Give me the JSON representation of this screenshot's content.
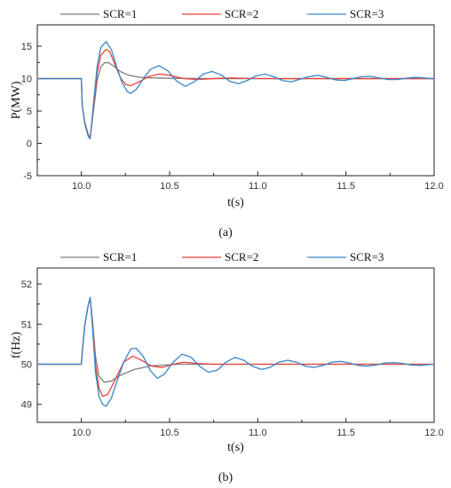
{
  "chart_data": [
    {
      "type": "line",
      "caption": "(a)",
      "xlabel": "t(s)",
      "ylabel": "P(MW)",
      "xlim": [
        9.75,
        12.0
      ],
      "ylim": [
        -5,
        18.3
      ],
      "x_ticks": [
        10.0,
        10.5,
        11.0,
        11.5,
        12.0
      ],
      "x_tick_labels": [
        "10.0",
        "10.5",
        "11.0",
        "11.5",
        "12.0"
      ],
      "y_ticks": [
        -5,
        0,
        5,
        10,
        15
      ],
      "y_tick_labels": [
        "-5",
        "0",
        "5",
        "10",
        "15"
      ],
      "legend_position": "top",
      "series": [
        {
          "name": "SCR=1",
          "color": "#7f7f7f",
          "points": [
            [
              9.75,
              10
            ],
            [
              10.0,
              10
            ],
            [
              10.005,
              5.8
            ],
            [
              10.02,
              3.2
            ],
            [
              10.04,
              1.3
            ],
            [
              10.05,
              0.9
            ],
            [
              10.07,
              5.3
            ],
            [
              10.09,
              9.8
            ],
            [
              10.11,
              11.8
            ],
            [
              10.13,
              12.4
            ],
            [
              10.15,
              12.5
            ],
            [
              10.18,
              12.0
            ],
            [
              10.22,
              11.1
            ],
            [
              10.27,
              10.5
            ],
            [
              10.33,
              10.2
            ],
            [
              10.4,
              10.1
            ],
            [
              10.5,
              10.05
            ],
            [
              10.7,
              10.0
            ],
            [
              12.0,
              10.0
            ]
          ]
        },
        {
          "name": "SCR=2",
          "color": "#e8443a",
          "points": [
            [
              9.75,
              10
            ],
            [
              10.0,
              10
            ],
            [
              10.005,
              5.8
            ],
            [
              10.02,
              3.0
            ],
            [
              10.04,
              1.1
            ],
            [
              10.05,
              0.8
            ],
            [
              10.07,
              6.0
            ],
            [
              10.09,
              11.0
            ],
            [
              10.11,
              13.6
            ],
            [
              10.14,
              14.5
            ],
            [
              10.16,
              14.2
            ],
            [
              10.19,
              12.2
            ],
            [
              10.22,
              10.2
            ],
            [
              10.25,
              9.1
            ],
            [
              10.28,
              8.9
            ],
            [
              10.32,
              9.4
            ],
            [
              10.38,
              10.3
            ],
            [
              10.44,
              10.7
            ],
            [
              10.5,
              10.5
            ],
            [
              10.58,
              10.0
            ],
            [
              10.66,
              9.85
            ],
            [
              10.75,
              10.0
            ],
            [
              10.85,
              10.1
            ],
            [
              10.95,
              10.02
            ],
            [
              11.1,
              10.0
            ],
            [
              12.0,
              10.0
            ]
          ]
        },
        {
          "name": "SCR=3",
          "color": "#3a86c8",
          "points": [
            [
              9.75,
              10
            ],
            [
              10.0,
              10
            ],
            [
              10.005,
              5.8
            ],
            [
              10.02,
              2.9
            ],
            [
              10.04,
              1.0
            ],
            [
              10.05,
              0.7
            ],
            [
              10.07,
              6.5
            ],
            [
              10.09,
              12.0
            ],
            [
              10.11,
              14.8
            ],
            [
              10.14,
              15.7
            ],
            [
              10.17,
              14.5
            ],
            [
              10.2,
              11.8
            ],
            [
              10.23,
              9.4
            ],
            [
              10.26,
              8.0
            ],
            [
              10.28,
              7.7
            ],
            [
              10.31,
              8.3
            ],
            [
              10.35,
              9.9
            ],
            [
              10.39,
              11.4
            ],
            [
              10.44,
              12.0
            ],
            [
              10.49,
              11.2
            ],
            [
              10.54,
              9.6
            ],
            [
              10.59,
              8.8
            ],
            [
              10.64,
              9.5
            ],
            [
              10.69,
              10.7
            ],
            [
              10.74,
              11.1
            ],
            [
              10.79,
              10.6
            ],
            [
              10.84,
              9.6
            ],
            [
              10.89,
              9.2
            ],
            [
              10.94,
              9.7
            ],
            [
              10.99,
              10.4
            ],
            [
              11.04,
              10.7
            ],
            [
              11.09,
              10.3
            ],
            [
              11.14,
              9.7
            ],
            [
              11.19,
              9.5
            ],
            [
              11.24,
              9.9
            ],
            [
              11.29,
              10.3
            ],
            [
              11.34,
              10.5
            ],
            [
              11.39,
              10.2
            ],
            [
              11.44,
              9.8
            ],
            [
              11.49,
              9.7
            ],
            [
              11.54,
              10.0
            ],
            [
              11.59,
              10.3
            ],
            [
              11.64,
              10.35
            ],
            [
              11.69,
              10.1
            ],
            [
              11.74,
              9.85
            ],
            [
              11.79,
              9.85
            ],
            [
              11.84,
              10.05
            ],
            [
              11.89,
              10.2
            ],
            [
              11.94,
              10.1
            ],
            [
              12.0,
              9.95
            ]
          ]
        }
      ]
    },
    {
      "type": "line",
      "caption": "(b)",
      "xlabel": "t(s)",
      "ylabel": "f(Hz)",
      "xlim": [
        9.75,
        12.0
      ],
      "ylim": [
        48.55,
        52.4
      ],
      "x_ticks": [
        10.0,
        10.5,
        11.0,
        11.5,
        12.0
      ],
      "x_tick_labels": [
        "10.0",
        "10.5",
        "11.0",
        "11.5",
        "12.0"
      ],
      "y_ticks": [
        49,
        50,
        51,
        52
      ],
      "y_tick_labels": [
        "49",
        "50",
        "51",
        "52"
      ],
      "legend_position": "top",
      "series": [
        {
          "name": "SCR=1",
          "color": "#7f7f7f",
          "points": [
            [
              9.75,
              50
            ],
            [
              10.0,
              50
            ],
            [
              10.005,
              50.3
            ],
            [
              10.02,
              51.0
            ],
            [
              10.04,
              51.5
            ],
            [
              10.05,
              51.65
            ],
            [
              10.065,
              51.0
            ],
            [
              10.08,
              50.2
            ],
            [
              10.1,
              49.7
            ],
            [
              10.13,
              49.55
            ],
            [
              10.17,
              49.58
            ],
            [
              10.22,
              49.72
            ],
            [
              10.3,
              49.87
            ],
            [
              10.4,
              49.96
            ],
            [
              10.55,
              50.0
            ],
            [
              12.0,
              50.0
            ]
          ]
        },
        {
          "name": "SCR=2",
          "color": "#e8443a",
          "points": [
            [
              9.75,
              50
            ],
            [
              10.0,
              50
            ],
            [
              10.005,
              50.3
            ],
            [
              10.02,
              51.0
            ],
            [
              10.04,
              51.5
            ],
            [
              10.05,
              51.65
            ],
            [
              10.065,
              50.9
            ],
            [
              10.08,
              50.0
            ],
            [
              10.1,
              49.4
            ],
            [
              10.12,
              49.2
            ],
            [
              10.15,
              49.25
            ],
            [
              10.19,
              49.6
            ],
            [
              10.24,
              50.05
            ],
            [
              10.29,
              50.2
            ],
            [
              10.34,
              50.1
            ],
            [
              10.4,
              49.95
            ],
            [
              10.46,
              49.92
            ],
            [
              10.52,
              50.0
            ],
            [
              10.58,
              50.05
            ],
            [
              10.65,
              50.02
            ],
            [
              10.75,
              50.0
            ],
            [
              12.0,
              50.0
            ]
          ]
        },
        {
          "name": "SCR=3",
          "color": "#3a86c8",
          "points": [
            [
              9.75,
              50
            ],
            [
              10.0,
              50
            ],
            [
              10.005,
              50.3
            ],
            [
              10.02,
              51.0
            ],
            [
              10.04,
              51.5
            ],
            [
              10.05,
              51.67
            ],
            [
              10.065,
              50.8
            ],
            [
              10.08,
              49.8
            ],
            [
              10.1,
              49.2
            ],
            [
              10.12,
              49.0
            ],
            [
              10.14,
              48.95
            ],
            [
              10.17,
              49.15
            ],
            [
              10.2,
              49.55
            ],
            [
              10.24,
              50.05
            ],
            [
              10.28,
              50.38
            ],
            [
              10.31,
              50.4
            ],
            [
              10.35,
              50.2
            ],
            [
              10.39,
              49.85
            ],
            [
              10.43,
              49.65
            ],
            [
              10.47,
              49.75
            ],
            [
              10.52,
              50.05
            ],
            [
              10.57,
              50.25
            ],
            [
              10.62,
              50.18
            ],
            [
              10.67,
              49.95
            ],
            [
              10.72,
              49.8
            ],
            [
              10.77,
              49.85
            ],
            [
              10.82,
              50.05
            ],
            [
              10.87,
              50.17
            ],
            [
              10.92,
              50.1
            ],
            [
              10.97,
              49.95
            ],
            [
              11.02,
              49.87
            ],
            [
              11.07,
              49.92
            ],
            [
              11.12,
              50.05
            ],
            [
              11.17,
              50.1
            ],
            [
              11.22,
              50.05
            ],
            [
              11.27,
              49.95
            ],
            [
              11.32,
              49.92
            ],
            [
              11.37,
              49.97
            ],
            [
              11.42,
              50.05
            ],
            [
              11.47,
              50.07
            ],
            [
              11.52,
              50.03
            ],
            [
              11.57,
              49.97
            ],
            [
              11.62,
              49.95
            ],
            [
              11.67,
              49.98
            ],
            [
              11.72,
              50.03
            ],
            [
              11.77,
              50.04
            ],
            [
              11.82,
              50.02
            ],
            [
              11.87,
              49.98
            ],
            [
              11.92,
              49.97
            ],
            [
              12.0,
              50.0
            ]
          ]
        }
      ]
    }
  ]
}
